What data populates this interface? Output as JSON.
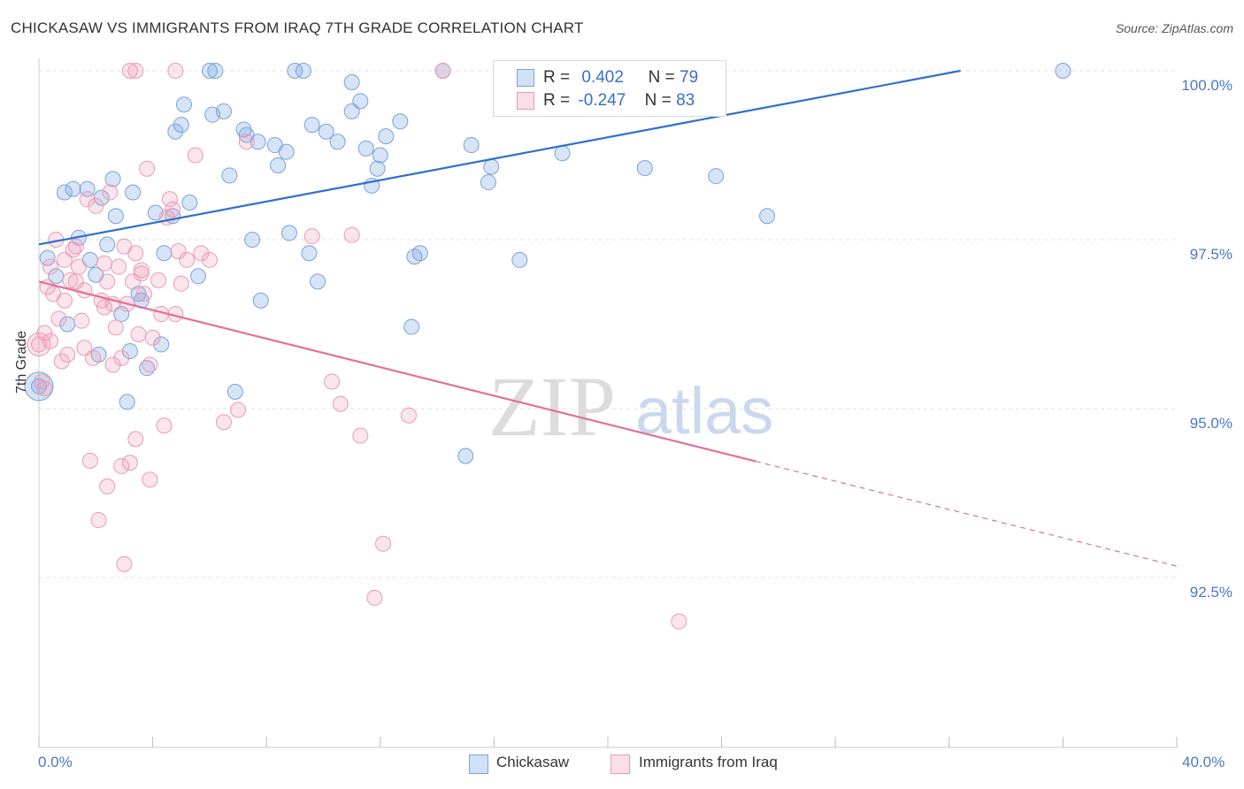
{
  "header": {
    "title": "CHICKASAW VS IMMIGRANTS FROM IRAQ 7TH GRADE CORRELATION CHART",
    "source": "Source: ZipAtlas.com"
  },
  "watermark": {
    "zip": "ZIP",
    "atlas": "atlas"
  },
  "legend": {
    "r_label": "R =",
    "n_label": "N =",
    "rows": [
      {
        "r": "0.402",
        "n": "79"
      },
      {
        "r": "-0.247",
        "n": "83"
      }
    ]
  },
  "bottom_legend": [
    "Chickasaw",
    "Immigrants from Iraq"
  ],
  "colors": {
    "blue_fill": "rgba(120,165,225,0.30)",
    "blue_stroke": "#7aa3d8",
    "blue_line": "#2f6fcc",
    "pink_fill": "rgba(240,150,180,0.25)",
    "pink_stroke": "#e99ab6",
    "pink_line": "#e0709a",
    "tick_text": "#4a78c2",
    "grid": "#e3e3e3"
  },
  "chart_data": {
    "type": "scatter",
    "title": "CHICKASAW VS IMMIGRANTS FROM IRAQ 7TH GRADE CORRELATION CHART",
    "xlabel": "",
    "ylabel": "7th Grade",
    "xlim": [
      0,
      40
    ],
    "ylim": [
      90.3,
      100.6
    ],
    "x_tick_labels": [
      "0.0%",
      "40.0%"
    ],
    "y_ticks": [
      100.0,
      97.5,
      95.0,
      92.5
    ],
    "y_tick_labels": [
      "100.0%",
      "97.5%",
      "95.0%",
      "92.5%"
    ],
    "grid": true,
    "legend_position": "top-center",
    "series": [
      {
        "name": "Chickasaw",
        "color": "#7aa3d8",
        "R": 0.402,
        "N": 79,
        "trend": {
          "x": [
            0,
            32.4
          ],
          "y": [
            97.43,
            100.0
          ],
          "dashed_to": null
        },
        "points": [
          [
            0.0,
            95.33
          ],
          [
            0.3,
            97.23
          ],
          [
            0.6,
            96.96
          ],
          [
            0.9,
            98.2
          ],
          [
            1.2,
            98.25
          ],
          [
            1.4,
            97.53
          ],
          [
            1.7,
            98.25
          ],
          [
            1.8,
            97.2
          ],
          [
            2.0,
            96.98
          ],
          [
            2.2,
            98.12
          ],
          [
            2.4,
            97.43
          ],
          [
            2.6,
            98.4
          ],
          [
            2.7,
            97.85
          ],
          [
            2.9,
            96.4
          ],
          [
            3.1,
            95.1
          ],
          [
            3.3,
            98.2
          ],
          [
            3.5,
            96.7
          ],
          [
            3.6,
            96.6
          ],
          [
            3.8,
            95.6
          ],
          [
            4.1,
            97.9
          ],
          [
            4.3,
            95.95
          ],
          [
            4.4,
            97.3
          ],
          [
            4.8,
            99.1
          ],
          [
            5.0,
            99.2
          ],
          [
            5.1,
            99.5
          ],
          [
            5.3,
            98.05
          ],
          [
            5.6,
            96.96
          ],
          [
            6.0,
            100.0
          ],
          [
            6.1,
            99.35
          ],
          [
            6.2,
            100.0
          ],
          [
            6.5,
            99.4
          ],
          [
            6.7,
            98.45
          ],
          [
            6.9,
            95.25
          ],
          [
            7.2,
            99.13
          ],
          [
            7.3,
            99.05
          ],
          [
            7.5,
            97.5
          ],
          [
            7.7,
            98.95
          ],
          [
            7.8,
            96.6
          ],
          [
            8.3,
            98.9
          ],
          [
            8.4,
            98.6
          ],
          [
            8.7,
            98.8
          ],
          [
            8.8,
            97.6
          ],
          [
            9.0,
            100.0
          ],
          [
            9.3,
            100.0
          ],
          [
            9.5,
            97.3
          ],
          [
            9.6,
            99.2
          ],
          [
            9.8,
            96.88
          ],
          [
            10.1,
            99.1
          ],
          [
            10.5,
            98.95
          ],
          [
            11.0,
            99.4
          ],
          [
            11.3,
            99.55
          ],
          [
            11.0,
            99.83
          ],
          [
            11.5,
            98.85
          ],
          [
            11.7,
            98.3
          ],
          [
            11.9,
            98.55
          ],
          [
            12.0,
            98.75
          ],
          [
            12.2,
            99.03
          ],
          [
            12.7,
            99.25
          ],
          [
            13.1,
            96.21
          ],
          [
            13.2,
            97.25
          ],
          [
            13.4,
            97.3
          ],
          [
            14.2,
            100.0
          ],
          [
            15.0,
            94.3
          ],
          [
            15.2,
            98.9
          ],
          [
            15.8,
            98.35
          ],
          [
            15.9,
            98.58
          ],
          [
            16.5,
            100.0
          ],
          [
            16.9,
            97.2
          ],
          [
            17.7,
            100.0
          ],
          [
            18.4,
            98.78
          ],
          [
            19.6,
            100.0
          ],
          [
            21.3,
            98.56
          ],
          [
            23.8,
            98.44
          ],
          [
            25.6,
            97.85
          ],
          [
            36.0,
            100.0
          ],
          [
            3.2,
            95.85
          ],
          [
            2.1,
            95.8
          ],
          [
            1.0,
            96.25
          ],
          [
            4.7,
            97.85
          ]
        ]
      },
      {
        "name": "Immigrants from Iraq",
        "color": "#e99ab6",
        "R": -0.247,
        "N": 83,
        "trend": {
          "x": [
            0,
            25.2
          ],
          "y": [
            96.88,
            94.22
          ],
          "dashed_to": [
            40,
            92.67
          ]
        },
        "points": [
          [
            0.0,
            95.95
          ],
          [
            0.1,
            95.4
          ],
          [
            0.2,
            96.12
          ],
          [
            0.3,
            96.8
          ],
          [
            0.4,
            97.1
          ],
          [
            0.5,
            96.7
          ],
          [
            0.6,
            97.5
          ],
          [
            0.7,
            96.33
          ],
          [
            0.8,
            95.7
          ],
          [
            0.9,
            97.2
          ],
          [
            1.0,
            95.8
          ],
          [
            1.1,
            96.9
          ],
          [
            1.2,
            97.35
          ],
          [
            1.3,
            96.88
          ],
          [
            1.4,
            97.1
          ],
          [
            1.5,
            96.3
          ],
          [
            1.6,
            95.9
          ],
          [
            1.7,
            98.1
          ],
          [
            1.8,
            94.23
          ],
          [
            2.0,
            98.0
          ],
          [
            2.1,
            93.35
          ],
          [
            2.2,
            96.6
          ],
          [
            2.3,
            96.5
          ],
          [
            2.4,
            96.88
          ],
          [
            2.5,
            98.2
          ],
          [
            2.6,
            95.65
          ],
          [
            2.7,
            96.2
          ],
          [
            2.8,
            97.1
          ],
          [
            2.9,
            95.75
          ],
          [
            3.0,
            97.4
          ],
          [
            3.1,
            96.55
          ],
          [
            3.2,
            94.2
          ],
          [
            3.3,
            96.88
          ],
          [
            3.4,
            97.3
          ],
          [
            3.5,
            96.1
          ],
          [
            3.6,
            97.0
          ],
          [
            3.7,
            96.7
          ],
          [
            3.8,
            98.55
          ],
          [
            3.9,
            95.65
          ],
          [
            4.0,
            96.05
          ],
          [
            4.2,
            96.9
          ],
          [
            4.3,
            96.4
          ],
          [
            4.5,
            97.83
          ],
          [
            4.6,
            98.1
          ],
          [
            4.7,
            97.95
          ],
          [
            4.8,
            96.4
          ],
          [
            4.9,
            97.33
          ],
          [
            5.0,
            96.85
          ],
          [
            5.2,
            97.2
          ],
          [
            5.5,
            98.75
          ],
          [
            5.7,
            97.3
          ],
          [
            6.0,
            97.2
          ],
          [
            6.5,
            94.8
          ],
          [
            7.0,
            94.98
          ],
          [
            7.3,
            98.95
          ],
          [
            2.4,
            93.85
          ],
          [
            3.0,
            92.7
          ],
          [
            3.4,
            94.55
          ],
          [
            3.9,
            93.95
          ],
          [
            4.4,
            94.75
          ],
          [
            3.2,
            100.0
          ],
          [
            3.4,
            100.0
          ],
          [
            4.8,
            100.0
          ],
          [
            9.6,
            97.55
          ],
          [
            10.3,
            95.4
          ],
          [
            10.6,
            95.07
          ],
          [
            11.0,
            97.57
          ],
          [
            11.3,
            94.6
          ],
          [
            11.8,
            92.2
          ],
          [
            12.1,
            93.0
          ],
          [
            13.0,
            94.9
          ],
          [
            14.2,
            100.0
          ],
          [
            22.5,
            91.85
          ],
          [
            1.9,
            95.75
          ],
          [
            2.6,
            96.55
          ],
          [
            3.6,
            97.05
          ],
          [
            1.3,
            97.4
          ],
          [
            0.9,
            96.6
          ],
          [
            0.4,
            96.0
          ],
          [
            0.2,
            95.3
          ],
          [
            2.9,
            94.15
          ],
          [
            2.3,
            97.15
          ],
          [
            1.6,
            96.75
          ]
        ]
      }
    ]
  }
}
